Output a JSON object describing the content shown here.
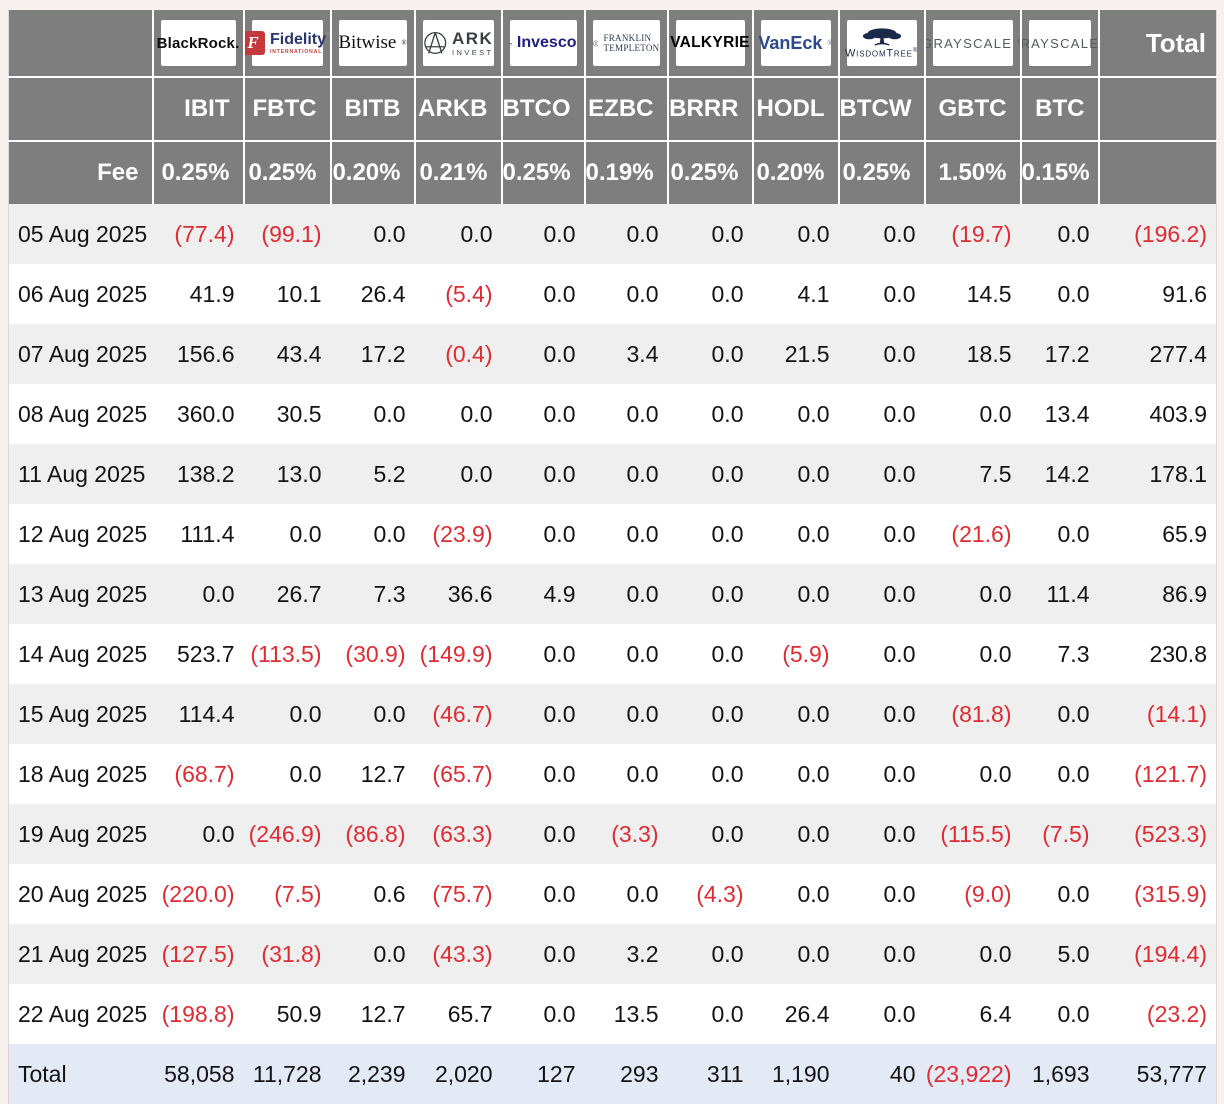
{
  "header": {
    "providers": [
      {
        "name": "BlackRock",
        "text": "BlackRock."
      },
      {
        "name": "Fidelity International",
        "f_letter": "F",
        "brand": "Fidelity",
        "mark": "™",
        "sub": "INTERNATIONAL"
      },
      {
        "name": "Bitwise",
        "text": "Bitwise",
        "mark": "®"
      },
      {
        "name": "ARK Invest",
        "line1": "ARK",
        "line2": "INVEST"
      },
      {
        "name": "Invesco",
        "text": "Invesco"
      },
      {
        "name": "Franklin Templeton",
        "line1": "FRANKLIN",
        "line2": "TEMPLETON"
      },
      {
        "name": "Valkyrie",
        "text": "VALKYRIE"
      },
      {
        "name": "VanEck",
        "text": "VanEck",
        "mark": "®"
      },
      {
        "name": "WisdomTree",
        "text": "WisdomTree",
        "mark": "®"
      },
      {
        "name": "Grayscale",
        "text": "GRAYSCALE",
        "mark": "®"
      },
      {
        "name": "Grayscale",
        "text": "GRAYSCALE",
        "mark": "®"
      }
    ],
    "total_label": "Total"
  },
  "chart_data": {
    "type": "table",
    "tickers": [
      "IBIT",
      "FBTC",
      "BITB",
      "ARKB",
      "BTCO",
      "EZBC",
      "BRRR",
      "HODL",
      "BTCW",
      "GBTC",
      "BTC"
    ],
    "fee_label": "Fee",
    "fees": [
      "0.25%",
      "0.25%",
      "0.20%",
      "0.21%",
      "0.25%",
      "0.19%",
      "0.25%",
      "0.20%",
      "0.25%",
      "1.50%",
      "0.15%"
    ],
    "negative_format": "parentheses shown in red",
    "rows": [
      {
        "date": "05 Aug 2025",
        "values": [
          "(77.4)",
          "(99.1)",
          "0.0",
          "0.0",
          "0.0",
          "0.0",
          "0.0",
          "0.0",
          "0.0",
          "(19.7)",
          "0.0"
        ],
        "total": "(196.2)"
      },
      {
        "date": "06 Aug 2025",
        "values": [
          "41.9",
          "10.1",
          "26.4",
          "(5.4)",
          "0.0",
          "0.0",
          "0.0",
          "4.1",
          "0.0",
          "14.5",
          "0.0"
        ],
        "total": "91.6"
      },
      {
        "date": "07 Aug 2025",
        "values": [
          "156.6",
          "43.4",
          "17.2",
          "(0.4)",
          "0.0",
          "3.4",
          "0.0",
          "21.5",
          "0.0",
          "18.5",
          "17.2"
        ],
        "total": "277.4"
      },
      {
        "date": "08 Aug 2025",
        "values": [
          "360.0",
          "30.5",
          "0.0",
          "0.0",
          "0.0",
          "0.0",
          "0.0",
          "0.0",
          "0.0",
          "0.0",
          "13.4"
        ],
        "total": "403.9"
      },
      {
        "date": "11 Aug 2025",
        "values": [
          "138.2",
          "13.0",
          "5.2",
          "0.0",
          "0.0",
          "0.0",
          "0.0",
          "0.0",
          "0.0",
          "7.5",
          "14.2"
        ],
        "total": "178.1"
      },
      {
        "date": "12 Aug 2025",
        "values": [
          "111.4",
          "0.0",
          "0.0",
          "(23.9)",
          "0.0",
          "0.0",
          "0.0",
          "0.0",
          "0.0",
          "(21.6)",
          "0.0"
        ],
        "total": "65.9"
      },
      {
        "date": "13 Aug 2025",
        "values": [
          "0.0",
          "26.7",
          "7.3",
          "36.6",
          "4.9",
          "0.0",
          "0.0",
          "0.0",
          "0.0",
          "0.0",
          "11.4"
        ],
        "total": "86.9"
      },
      {
        "date": "14 Aug 2025",
        "values": [
          "523.7",
          "(113.5)",
          "(30.9)",
          "(149.9)",
          "0.0",
          "0.0",
          "0.0",
          "(5.9)",
          "0.0",
          "0.0",
          "7.3"
        ],
        "total": "230.8"
      },
      {
        "date": "15 Aug 2025",
        "values": [
          "114.4",
          "0.0",
          "0.0",
          "(46.7)",
          "0.0",
          "0.0",
          "0.0",
          "0.0",
          "0.0",
          "(81.8)",
          "0.0"
        ],
        "total": "(14.1)"
      },
      {
        "date": "18 Aug 2025",
        "values": [
          "(68.7)",
          "0.0",
          "12.7",
          "(65.7)",
          "0.0",
          "0.0",
          "0.0",
          "0.0",
          "0.0",
          "0.0",
          "0.0"
        ],
        "total": "(121.7)"
      },
      {
        "date": "19 Aug 2025",
        "values": [
          "0.0",
          "(246.9)",
          "(86.8)",
          "(63.3)",
          "0.0",
          "(3.3)",
          "0.0",
          "0.0",
          "0.0",
          "(115.5)",
          "(7.5)"
        ],
        "total": "(523.3)"
      },
      {
        "date": "20 Aug 2025",
        "values": [
          "(220.0)",
          "(7.5)",
          "0.6",
          "(75.7)",
          "0.0",
          "0.0",
          "(4.3)",
          "0.0",
          "0.0",
          "(9.0)",
          "0.0"
        ],
        "total": "(315.9)"
      },
      {
        "date": "21 Aug 2025",
        "values": [
          "(127.5)",
          "(31.8)",
          "0.0",
          "(43.3)",
          "0.0",
          "3.2",
          "0.0",
          "0.0",
          "0.0",
          "0.0",
          "5.0"
        ],
        "total": "(194.4)"
      },
      {
        "date": "22 Aug 2025",
        "values": [
          "(198.8)",
          "50.9",
          "12.7",
          "65.7",
          "0.0",
          "13.5",
          "0.0",
          "26.4",
          "0.0",
          "6.4",
          "0.0"
        ],
        "total": "(23.2)"
      }
    ],
    "total_row": {
      "label": "Total",
      "values": [
        "58,058",
        "11,728",
        "2,239",
        "2,020",
        "127",
        "293",
        "311",
        "1,190",
        "40",
        "(23,922)",
        "1,693"
      ],
      "total": "53,777"
    }
  },
  "colors": {
    "header_bg": "#7e7e7e",
    "header_text": "#ffffff",
    "row_stripe": "#efefef",
    "row_white": "#ffffff",
    "total_row_bg": "#e4e9f6",
    "negative": "#de2b31",
    "text": "#131313",
    "page_bg": "#f6f0ee"
  }
}
